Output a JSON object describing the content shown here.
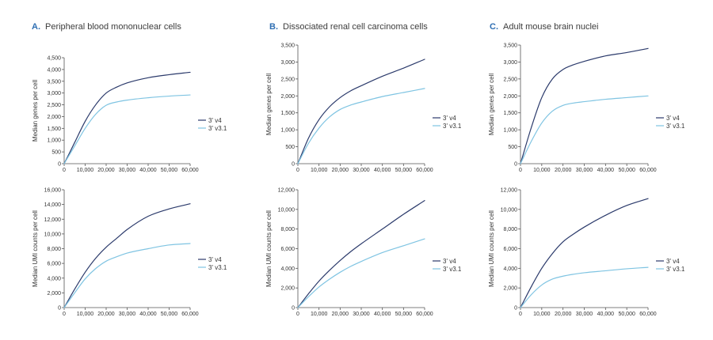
{
  "colors": {
    "v4": "#2b3a6b",
    "v31": "#7fc4e2",
    "axis": "#555555",
    "label_accent": "#2f6fb3"
  },
  "panels": [
    {
      "letter": "A.",
      "title": "Peripheral blood mononuclear cells"
    },
    {
      "letter": "B.",
      "title": "Dissociated renal cell carcinoma cells"
    },
    {
      "letter": "C.",
      "title": "Adult mouse brain nuclei"
    }
  ],
  "chart_data": [
    {
      "type": "line",
      "panel": "A",
      "title": "Peripheral blood mononuclear cells",
      "metric": "genes",
      "ylabel": "Median genes per cell",
      "xlabel": "",
      "xlim": [
        0,
        60000
      ],
      "ylim": [
        0,
        4500
      ],
      "xticks": [
        0,
        10000,
        20000,
        30000,
        40000,
        50000,
        60000
      ],
      "xtick_labels": [
        "0",
        "10,000",
        "20,000",
        "30,000",
        "40,000",
        "50,000",
        "60,000"
      ],
      "yticks": [
        0,
        500,
        1000,
        1500,
        2000,
        2500,
        3000,
        3500,
        4000,
        4500
      ],
      "ytick_labels": [
        "0",
        "500",
        "1,000",
        "1,500",
        "2,000",
        "2,500",
        "3,000",
        "3,500",
        "4,000",
        "4,500"
      ],
      "legend": "right",
      "x": [
        0,
        5000,
        10000,
        15000,
        20000,
        25000,
        30000,
        40000,
        50000,
        60000
      ],
      "series": [
        {
          "name": "3' v4",
          "values": [
            0,
            900,
            1800,
            2500,
            3000,
            3250,
            3430,
            3650,
            3780,
            3880
          ]
        },
        {
          "name": "3' v3.1",
          "values": [
            0,
            750,
            1500,
            2100,
            2480,
            2620,
            2700,
            2800,
            2870,
            2920
          ]
        }
      ]
    },
    {
      "type": "line",
      "panel": "B",
      "title": "Dissociated renal cell carcinoma cells",
      "metric": "genes",
      "ylabel": "Median genes per cell",
      "xlabel": "",
      "xlim": [
        0,
        60000
      ],
      "ylim": [
        0,
        3500
      ],
      "xticks": [
        0,
        10000,
        20000,
        30000,
        40000,
        50000,
        60000
      ],
      "xtick_labels": [
        "0",
        "10,000",
        "20,000",
        "30,000",
        "40,000",
        "50,000",
        "60,000"
      ],
      "yticks": [
        0,
        500,
        1000,
        1500,
        2000,
        2500,
        3000,
        3500
      ],
      "ytick_labels": [
        "0",
        "500",
        "1,000",
        "1,500",
        "2,000",
        "2,500",
        "3,000",
        "3,500"
      ],
      "legend": "right",
      "x": [
        0,
        5000,
        10000,
        15000,
        20000,
        25000,
        30000,
        40000,
        50000,
        60000
      ],
      "series": [
        {
          "name": "3' v4",
          "values": [
            0,
            750,
            1300,
            1680,
            1950,
            2150,
            2300,
            2580,
            2820,
            3080
          ]
        },
        {
          "name": "3' v3.1",
          "values": [
            0,
            600,
            1050,
            1380,
            1600,
            1730,
            1820,
            1980,
            2100,
            2220
          ]
        }
      ]
    },
    {
      "type": "line",
      "panel": "C",
      "title": "Adult mouse brain nuclei",
      "metric": "genes",
      "ylabel": "Median genes per cell",
      "xlabel": "",
      "xlim": [
        0,
        60000
      ],
      "ylim": [
        0,
        3500
      ],
      "xticks": [
        0,
        10000,
        20000,
        30000,
        40000,
        50000,
        60000
      ],
      "xtick_labels": [
        "0",
        "10,000",
        "20,000",
        "30,000",
        "40,000",
        "50,000",
        "60,000"
      ],
      "yticks": [
        0,
        500,
        1000,
        1500,
        2000,
        2500,
        3000,
        3500
      ],
      "ytick_labels": [
        "0",
        "500",
        "1,000",
        "1,500",
        "2,000",
        "2,500",
        "3,000",
        "3,500"
      ],
      "legend": "right",
      "x": [
        0,
        5000,
        10000,
        15000,
        20000,
        25000,
        30000,
        40000,
        50000,
        60000
      ],
      "series": [
        {
          "name": "3' v4",
          "values": [
            0,
            1050,
            1950,
            2500,
            2780,
            2920,
            3020,
            3180,
            3280,
            3400
          ]
        },
        {
          "name": "3' v3.1",
          "values": [
            0,
            650,
            1200,
            1550,
            1720,
            1790,
            1830,
            1900,
            1950,
            2000
          ]
        }
      ]
    },
    {
      "type": "line",
      "panel": "A",
      "title": "Peripheral blood mononuclear cells",
      "metric": "umi",
      "ylabel": "Median UMI counts per cell",
      "xlabel": "",
      "xlim": [
        0,
        60000
      ],
      "ylim": [
        0,
        16000
      ],
      "xticks": [
        0,
        10000,
        20000,
        30000,
        40000,
        50000,
        60000
      ],
      "xtick_labels": [
        "0",
        "10,000",
        "20,000",
        "30,000",
        "40,000",
        "50,000",
        "60,000"
      ],
      "yticks": [
        0,
        2000,
        4000,
        6000,
        8000,
        10000,
        12000,
        14000,
        16000
      ],
      "ytick_labels": [
        "0",
        "2,000",
        "4,000",
        "6,000",
        "8,000",
        "10,000",
        "12,000",
        "14,000",
        "16,000"
      ],
      "legend": "right",
      "x": [
        0,
        5000,
        10000,
        15000,
        20000,
        25000,
        30000,
        40000,
        50000,
        60000
      ],
      "series": [
        {
          "name": "3' v4",
          "values": [
            0,
            2500,
            4800,
            6700,
            8200,
            9400,
            10600,
            12400,
            13400,
            14100
          ]
        },
        {
          "name": "3' v3.1",
          "values": [
            0,
            2000,
            3900,
            5300,
            6300,
            6900,
            7400,
            8000,
            8500,
            8700
          ]
        }
      ]
    },
    {
      "type": "line",
      "panel": "B",
      "title": "Dissociated renal cell carcinoma cells",
      "metric": "umi",
      "ylabel": "Median UMI counts per cell",
      "xlabel": "",
      "xlim": [
        0,
        60000
      ],
      "ylim": [
        0,
        12000
      ],
      "xticks": [
        0,
        10000,
        20000,
        30000,
        40000,
        50000,
        60000
      ],
      "xtick_labels": [
        "0",
        "10,000",
        "20,000",
        "30,000",
        "40,000",
        "50,000",
        "60,000"
      ],
      "yticks": [
        0,
        2000,
        4000,
        6000,
        8000,
        10000,
        12000
      ],
      "ytick_labels": [
        "0",
        "2,000",
        "4,000",
        "6,000",
        "8,000",
        "10,000",
        "12,000"
      ],
      "legend": "right",
      "x": [
        0,
        5000,
        10000,
        15000,
        20000,
        25000,
        30000,
        40000,
        50000,
        60000
      ],
      "series": [
        {
          "name": "3' v4",
          "values": [
            0,
            1400,
            2700,
            3800,
            4800,
            5700,
            6500,
            8000,
            9500,
            10900
          ]
        },
        {
          "name": "3' v3.1",
          "values": [
            0,
            1100,
            2100,
            2900,
            3600,
            4200,
            4700,
            5600,
            6300,
            7000
          ]
        }
      ]
    },
    {
      "type": "line",
      "panel": "C",
      "title": "Adult mouse brain nuclei",
      "metric": "umi",
      "ylabel": "Median UMI counts per cell",
      "xlabel": "",
      "xlim": [
        0,
        60000
      ],
      "ylim": [
        0,
        12000
      ],
      "xticks": [
        0,
        10000,
        20000,
        30000,
        40000,
        50000,
        60000
      ],
      "xtick_labels": [
        "0",
        "10,000",
        "20,000",
        "30,000",
        "40,000",
        "50,000",
        "60,000"
      ],
      "yticks": [
        0,
        2000,
        4000,
        6000,
        8000,
        10000,
        12000
      ],
      "ytick_labels": [
        "0",
        "2,000",
        "4,000",
        "6,000",
        "8,000",
        "10,000",
        "12,000"
      ],
      "legend": "right",
      "x": [
        0,
        5000,
        10000,
        15000,
        20000,
        25000,
        30000,
        40000,
        50000,
        60000
      ],
      "series": [
        {
          "name": "3' v4",
          "values": [
            0,
            2100,
            4000,
            5500,
            6700,
            7500,
            8200,
            9400,
            10400,
            11100
          ]
        },
        {
          "name": "3' v3.1",
          "values": [
            0,
            1300,
            2300,
            2900,
            3200,
            3400,
            3550,
            3750,
            3950,
            4100
          ]
        }
      ]
    }
  ]
}
